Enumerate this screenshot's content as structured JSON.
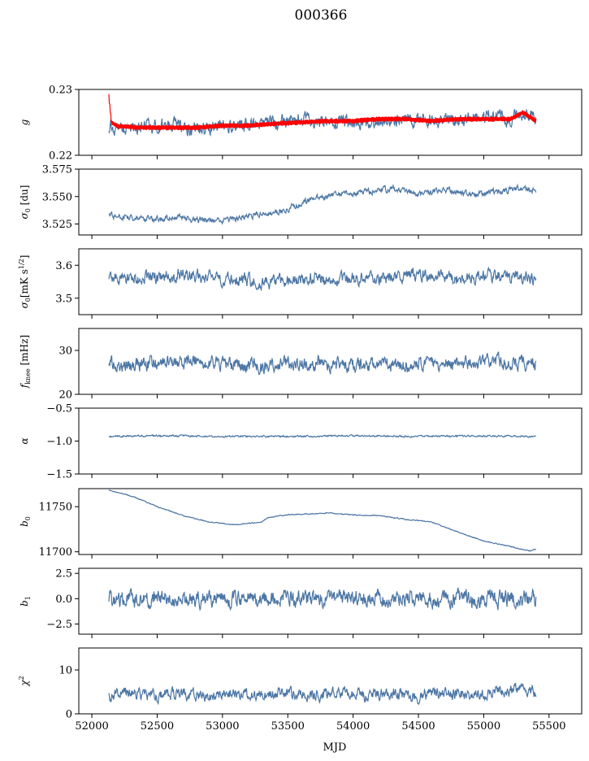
{
  "figure": {
    "title": "000366",
    "xlabel": "MJD"
  },
  "colors": {
    "series_blue": "#4c76a4",
    "series_red": "#ff0000"
  },
  "chart_data": {
    "type": "line",
    "title": "000366",
    "xlabel": "MJD",
    "xlim": [
      51900,
      55750
    ],
    "xticks": [
      52000,
      52500,
      53000,
      53500,
      54000,
      54500,
      55000,
      55500
    ],
    "x_range_data": [
      52130,
      55400
    ],
    "grid": false,
    "panels": [
      {
        "ylabel": "g",
        "ylim": [
          0.22,
          0.23
        ],
        "yticks": [
          0.22,
          0.23
        ],
        "ytick_labels": [
          "0.22",
          "0.23"
        ],
        "series": [
          {
            "color": "#4c76a4",
            "x": [
              52130,
              52200,
              52400,
              52600,
              52800,
              53000,
              53200,
              53400,
              53600,
              53800,
              54000,
              54200,
              54400,
              54600,
              54800,
              55000,
              55200,
              55300,
              55400
            ],
            "y": [
              0.2245,
              0.224,
              0.224,
              0.2245,
              0.224,
              0.2245,
              0.2245,
              0.2252,
              0.2255,
              0.2252,
              0.225,
              0.2255,
              0.2255,
              0.2255,
              0.2255,
              0.226,
              0.2255,
              0.2262,
              0.2255
            ],
            "amplitude": 0.0012
          },
          {
            "color": "#ff0000",
            "x": [
              52130,
              52150,
              52200,
              52400,
              52600,
              52800,
              53000,
              53200,
              53400,
              53600,
              53800,
              54000,
              54200,
              54400,
              54600,
              54800,
              55000,
              55200,
              55300,
              55400
            ],
            "y": [
              0.229,
              0.225,
              0.2244,
              0.2242,
              0.2242,
              0.2242,
              0.2245,
              0.2245,
              0.2248,
              0.225,
              0.2252,
              0.2252,
              0.2255,
              0.2255,
              0.2252,
              0.2255,
              0.2255,
              0.2255,
              0.2265,
              0.2252
            ],
            "amplitude": 0.0004
          }
        ]
      },
      {
        "ylabel": "σ0 [du]",
        "ylim": [
          3.515,
          3.575
        ],
        "yticks": [
          3.525,
          3.55,
          3.575
        ],
        "ytick_labels": [
          "3.525",
          "3.550",
          "3.575"
        ],
        "series": [
          {
            "color": "#4c76a4",
            "x": [
              52130,
              52300,
              52500,
              52700,
              52900,
              53100,
              53300,
              53500,
              53700,
              53900,
              54100,
              54300,
              54500,
              54700,
              54900,
              55100,
              55300,
              55400
            ],
            "y": [
              3.533,
              3.531,
              3.529,
              3.531,
              3.527,
              3.53,
              3.534,
              3.539,
              3.548,
              3.552,
              3.554,
              3.557,
              3.552,
              3.556,
              3.552,
              3.554,
              3.558,
              3.556
            ],
            "amplitude": 0.003
          }
        ]
      },
      {
        "ylabel": "σ0[mK s^1/2]",
        "ylim": [
          3.45,
          3.65
        ],
        "yticks": [
          3.5,
          3.6
        ],
        "ytick_labels": [
          "3.5",
          "3.6"
        ],
        "series": [
          {
            "color": "#4c76a4",
            "x": [
              52130,
              52400,
              52700,
              53000,
              53300,
              53600,
              53900,
              54200,
              54500,
              54800,
              55100,
              55400
            ],
            "y": [
              3.56,
              3.56,
              3.57,
              3.56,
              3.55,
              3.56,
              3.56,
              3.56,
              3.57,
              3.56,
              3.57,
              3.56
            ],
            "amplitude": 0.022
          }
        ]
      },
      {
        "ylabel": "fknee [mHz]",
        "ylim": [
          20,
          35
        ],
        "yticks": [
          20,
          30
        ],
        "ytick_labels": [
          "20",
          "30"
        ],
        "series": [
          {
            "color": "#4c76a4",
            "x": [
              52130,
              52400,
              52700,
              53000,
              53300,
              53600,
              53900,
              54200,
              54500,
              54800,
              55100,
              55400
            ],
            "y": [
              27,
              27,
              27.5,
              27,
              26.5,
              27,
              27,
              26.5,
              27,
              27,
              27.5,
              27
            ],
            "amplitude": 1.8
          }
        ]
      },
      {
        "ylabel": "α",
        "ylim": [
          -1.5,
          -0.5
        ],
        "yticks": [
          -1.5,
          -1.0,
          -0.5
        ],
        "ytick_labels": [
          "−1.5",
          "−1.0",
          "−0.5"
        ],
        "series": [
          {
            "color": "#4c76a4",
            "x": [
              52130,
              52500,
              53000,
              53500,
              54000,
              54500,
              55000,
              55400
            ],
            "y": [
              -0.93,
              -0.92,
              -0.93,
              -0.93,
              -0.92,
              -0.93,
              -0.92,
              -0.93
            ],
            "amplitude": 0.015
          }
        ]
      },
      {
        "ylabel": "b0",
        "ylim": [
          11697,
          11770
        ],
        "yticks": [
          11700,
          11750
        ],
        "ytick_labels": [
          "11700",
          "11750"
        ],
        "series": [
          {
            "color": "#4c76a4",
            "x": [
              52130,
              52300,
              52500,
              52700,
              52900,
              53100,
              53300,
              53350,
              53500,
              53700,
              53800,
              54000,
              54200,
              54400,
              54600,
              54800,
              55000,
              55200,
              55350,
              55400
            ],
            "y": [
              11768,
              11762,
              11750,
              11740,
              11733,
              11730,
              11733,
              11738,
              11741,
              11742,
              11743,
              11741,
              11740,
              11736,
              11733,
              11722,
              11712,
              11706,
              11701,
              11703
            ],
            "amplitude": 0.6
          }
        ]
      },
      {
        "ylabel": "b1",
        "ylim": [
          -3.5,
          3.0
        ],
        "yticks": [
          -2.5,
          0.0,
          2.5
        ],
        "ytick_labels": [
          "−2.5",
          "0.0",
          "2.5"
        ],
        "series": [
          {
            "color": "#4c76a4",
            "x": [
              52130,
              52500,
              53000,
              53500,
              54000,
              54500,
              55000,
              55400
            ],
            "y": [
              0.0,
              0.0,
              0.0,
              0.0,
              0.0,
              0.0,
              0.0,
              0.0
            ],
            "amplitude": 0.9
          }
        ]
      },
      {
        "ylabel": "χ2",
        "ylim": [
          0,
          15
        ],
        "yticks": [
          0,
          10
        ],
        "ytick_labels": [
          "0",
          "10"
        ],
        "series": [
          {
            "color": "#4c76a4",
            "x": [
              52130,
              52300,
              52500,
              52700,
              52900,
              53100,
              53300,
              53500,
              53700,
              53900,
              54100,
              54300,
              54500,
              54700,
              54900,
              55100,
              55300,
              55400
            ],
            "y": [
              4,
              5,
              4,
              5,
              3.5,
              5,
              4,
              5,
              4,
              5,
              4,
              5,
              4,
              5,
              4,
              5,
              6,
              5
            ],
            "amplitude": 1.5
          }
        ]
      }
    ]
  }
}
